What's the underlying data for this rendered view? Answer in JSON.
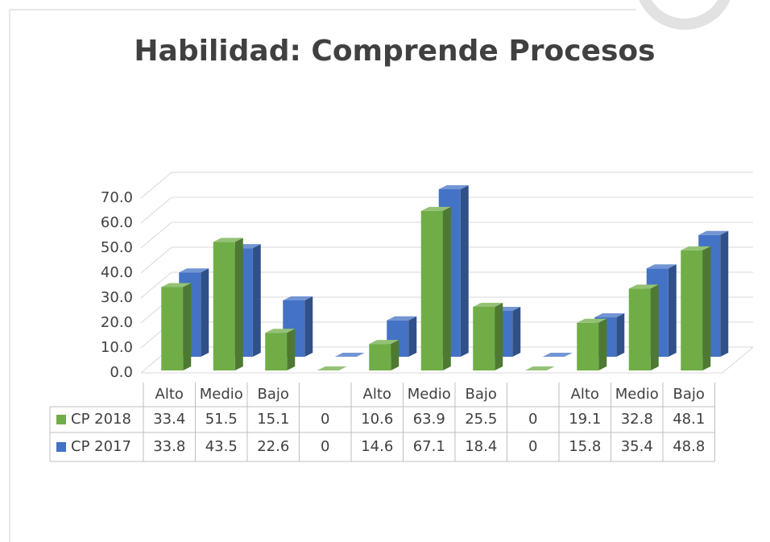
{
  "chart_data": {
    "type": "bar3d",
    "title": "Habilidad: Comprende Procesos",
    "categories": [
      "Alto",
      "Medio",
      "Bajo",
      null,
      "Alto",
      "Medio",
      "Bajo",
      null,
      "Alto",
      "Medio",
      "Bajo"
    ],
    "series": [
      {
        "name": "CP 2018",
        "color": "#70ad47",
        "values": [
          33.4,
          51.5,
          15.1,
          0,
          10.6,
          63.9,
          25.5,
          0,
          19.1,
          32.8,
          48.1
        ]
      },
      {
        "name": "CP 2017",
        "color": "#4472c4",
        "values": [
          33.8,
          43.5,
          22.6,
          0,
          14.6,
          67.1,
          18.4,
          0,
          15.8,
          35.4,
          48.8
        ]
      }
    ],
    "ylim": [
      0,
      70
    ],
    "yticks": [
      {
        "value": 0,
        "label": "0.0"
      },
      {
        "value": 10,
        "label": "10.0"
      },
      {
        "value": 20,
        "label": "20.0"
      },
      {
        "value": 30,
        "label": "30.0"
      },
      {
        "value": 40,
        "label": "40.0"
      },
      {
        "value": 50,
        "label": "50.0"
      },
      {
        "value": 60,
        "label": "60.0"
      },
      {
        "value": 70,
        "label": "70.0"
      }
    ],
    "grid": true,
    "data_table": true
  }
}
